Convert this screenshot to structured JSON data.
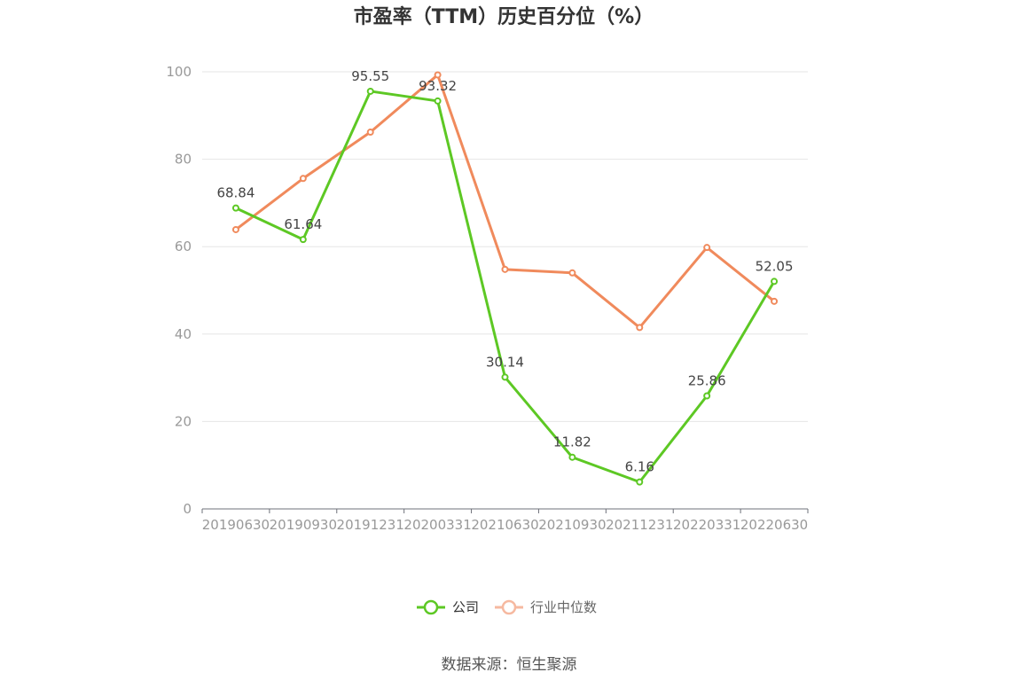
{
  "chart_data": {
    "type": "line",
    "title": "市盈率（TTM）历史百分位（%）",
    "categories": [
      "20190630",
      "20190930",
      "20191231",
      "20200331",
      "20210630",
      "20210930",
      "20211231",
      "20220331",
      "20220630"
    ],
    "ylim": [
      0,
      100
    ],
    "yticks": [
      0,
      20,
      40,
      60,
      80,
      100
    ],
    "grid": true,
    "legend_position": "bottom",
    "series": [
      {
        "name": "公司",
        "color": "#5dc824",
        "values": [
          68.84,
          61.64,
          95.55,
          93.32,
          30.14,
          11.82,
          6.16,
          25.86,
          52.05
        ],
        "data_labels": [
          "68.84",
          "61.64",
          "95.55",
          "93.32",
          "30.14",
          "11.82",
          "6.16",
          "25.86",
          "52.05"
        ]
      },
      {
        "name": "行业中位数",
        "color": "#f08a5c",
        "values": [
          63.9,
          75.6,
          86.2,
          99.3,
          54.8,
          54.0,
          41.5,
          59.8,
          47.5
        ]
      }
    ]
  },
  "source_text": "数据来源：恒生聚源"
}
